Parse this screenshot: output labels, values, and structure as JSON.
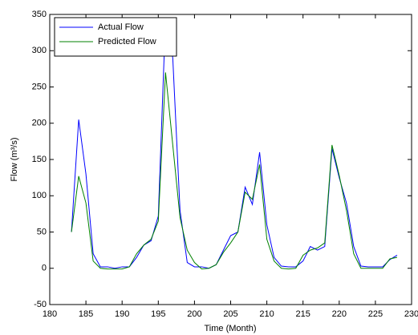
{
  "chart_data": {
    "type": "line",
    "xlabel": "Time (Month)",
    "ylabel": "Flow (m³/s)",
    "x": [
      183,
      184,
      185,
      186,
      187,
      188,
      189,
      190,
      191,
      192,
      193,
      194,
      195,
      196,
      197,
      198,
      199,
      200,
      201,
      202,
      203,
      204,
      205,
      206,
      207,
      208,
      209,
      210,
      211,
      212,
      213,
      214,
      215,
      216,
      217,
      218,
      219,
      220,
      221,
      222,
      223,
      224,
      225,
      226,
      227,
      228
    ],
    "series": [
      {
        "name": "Actual Flow",
        "color": "#0000ff",
        "values": [
          50,
          205,
          130,
          20,
          2,
          2,
          0,
          2,
          2,
          15,
          32,
          38,
          72,
          345,
          290,
          80,
          8,
          2,
          2,
          0,
          5,
          25,
          45,
          50,
          112,
          88,
          160,
          60,
          15,
          3,
          2,
          2,
          10,
          30,
          25,
          30,
          165,
          125,
          90,
          30,
          3,
          2,
          2,
          2,
          12,
          18
        ]
      },
      {
        "name": "Predicted Flow",
        "color": "#008000",
        "values": [
          50,
          127,
          90,
          10,
          0,
          -1,
          -1,
          -1,
          2,
          20,
          32,
          40,
          65,
          270,
          170,
          70,
          25,
          8,
          -1,
          0,
          5,
          22,
          35,
          50,
          105,
          95,
          143,
          40,
          10,
          0,
          -1,
          0,
          18,
          25,
          28,
          35,
          170,
          128,
          80,
          20,
          0,
          0,
          0,
          0,
          13,
          15
        ]
      }
    ],
    "xlim": [
      180,
      230
    ],
    "xticks": [
      180,
      185,
      190,
      195,
      200,
      205,
      210,
      215,
      220,
      225,
      230
    ],
    "ylim": [
      -50,
      350
    ],
    "yticks": [
      -50,
      0,
      50,
      100,
      150,
      200,
      250,
      300,
      350
    ],
    "grid": false,
    "legend": "upper left"
  }
}
